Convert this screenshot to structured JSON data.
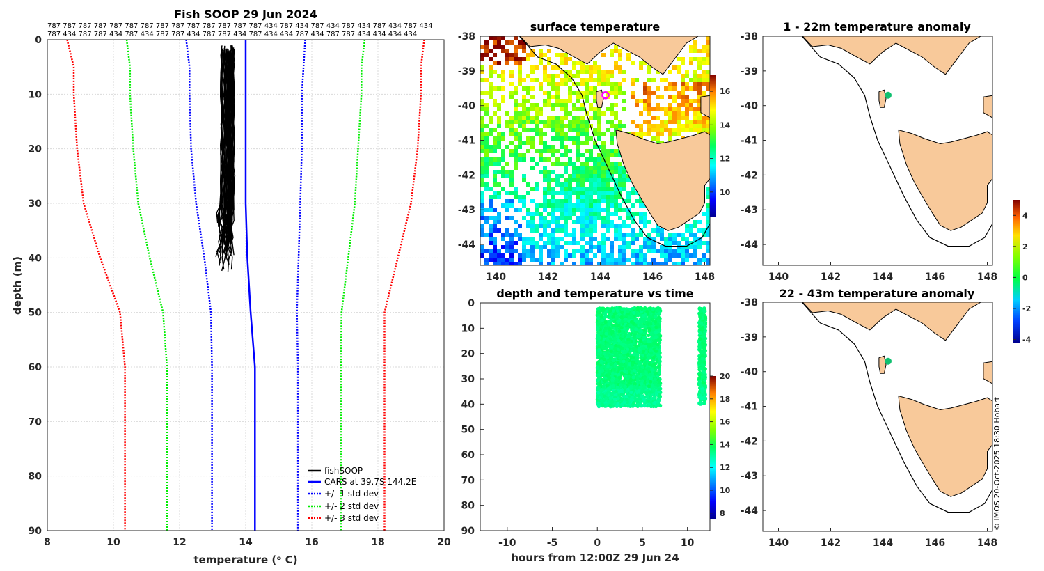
{
  "colors": {
    "fishSOOP": "#000000",
    "cars": "#0000ff",
    "std1": "#0000ff",
    "std2": "#00ee00",
    "std3": "#ff0000",
    "land": "#f8c99a",
    "marker_sst": "#ff00ff",
    "marker_anom": "#10c070"
  },
  "credit": "© IMOS 20-Oct-2025 18:30 Hobart",
  "profile": {
    "title": "Fish SOOP 29 Jun 2024",
    "id_row1": "787 787 787 787 787 787 787 787 787 787 787 787 787 787 434 787 434 787 434 787 434 787 434 787 434",
    "id_row2": "787 434 787 787 434 787 434 787 787 434 787 787 434 787 434 434 787 434 787 787 434 434 434 434",
    "xlabel": "temperature (ᵒ C)",
    "ylabel": "depth (m)",
    "legend": [
      "fishSOOP",
      "CARS at 39.7S 144.2E",
      "+/- 1 std dev",
      "+/- 2 std dev",
      "+/- 3 std dev"
    ]
  },
  "sst": {
    "title": "surface temperature"
  },
  "dtime": {
    "title": "depth and temperature vs time",
    "xlabel": "hours from 12:00Z 29 Jun 24"
  },
  "anom1": {
    "title": "1 - 22m temperature anomaly"
  },
  "anom2": {
    "title": "22 - 43m temperature anomaly"
  },
  "chart_data": [
    {
      "type": "line",
      "name": "profile",
      "title": "Fish SOOP 29 Jun 2024",
      "xlabel": "temperature (ᵒ C)",
      "ylabel": "depth (m)",
      "xlim": [
        8,
        20
      ],
      "ylim": [
        0,
        90
      ],
      "xticks": [
        8,
        10,
        12,
        14,
        16,
        18,
        20
      ],
      "yticks": [
        0,
        10,
        20,
        30,
        40,
        50,
        60,
        70,
        80,
        90
      ],
      "grid": true,
      "legend_position": "bottom-right",
      "depth": [
        0,
        5,
        10,
        20,
        30,
        40,
        50,
        60,
        70,
        80,
        90
      ],
      "cars_mean": [
        14.0,
        14.0,
        14.0,
        14.0,
        14.0,
        14.05,
        14.15,
        14.28,
        14.28,
        14.28,
        14.28
      ],
      "std1": {
        "lower": [
          12.2,
          12.3,
          12.3,
          12.35,
          12.5,
          12.75,
          12.95,
          12.98,
          12.98,
          12.98,
          12.98
        ],
        "upper": [
          15.8,
          15.75,
          15.7,
          15.7,
          15.65,
          15.6,
          15.55,
          15.58,
          15.58,
          15.58,
          15.58
        ]
      },
      "std2": {
        "lower": [
          10.4,
          10.5,
          10.5,
          10.6,
          10.75,
          11.1,
          11.5,
          11.62,
          11.62,
          11.62,
          11.62
        ],
        "upper": [
          17.6,
          17.5,
          17.5,
          17.4,
          17.3,
          17.1,
          16.9,
          16.88,
          16.88,
          16.88,
          16.88
        ]
      },
      "std3": {
        "lower": [
          8.6,
          8.8,
          8.8,
          8.9,
          9.1,
          9.6,
          10.2,
          10.35,
          10.35,
          10.35,
          10.35
        ],
        "upper": [
          19.4,
          19.3,
          19.3,
          19.2,
          19.0,
          18.6,
          18.2,
          18.2,
          18.2,
          18.2,
          18.2
        ]
      },
      "fishsoop": {
        "temp_range": [
          13.1,
          13.65
        ],
        "depth_range": [
          1,
          43
        ]
      }
    },
    {
      "type": "heatmap",
      "name": "surface temperature",
      "title": "surface temperature",
      "xlim": [
        139.4,
        148.2
      ],
      "ylim": [
        -44.6,
        -38
      ],
      "xticks": [
        140,
        142,
        144,
        146,
        148
      ],
      "yticks": [
        -38,
        -39,
        -40,
        -41,
        -42,
        -43,
        -44
      ],
      "colorbar": {
        "range": [
          8.5,
          17
        ],
        "ticks": [
          10,
          12,
          14,
          16
        ]
      },
      "marker": {
        "lon": 144.2,
        "lat": -39.7
      }
    },
    {
      "type": "scatter",
      "name": "depth and temperature vs time",
      "title": "depth and temperature vs time",
      "xlabel": "hours from 12:00Z 29 Jun 24",
      "xlim": [
        -13,
        12.5
      ],
      "ylim": [
        0,
        90
      ],
      "xticks": [
        -10,
        -5,
        0,
        5,
        10
      ],
      "yticks": [
        0,
        10,
        20,
        30,
        40,
        50,
        60,
        70,
        80,
        90
      ],
      "colorbar": {
        "range": [
          7.5,
          20
        ],
        "ticks": [
          8,
          10,
          12,
          14,
          16,
          18,
          20
        ]
      },
      "clusters": [
        {
          "hours": [
            0,
            7
          ],
          "depth": [
            1,
            43
          ],
          "temp": 13.5
        },
        {
          "hours": [
            11.3,
            12
          ],
          "depth": [
            1,
            42
          ],
          "temp": 13.5
        }
      ]
    },
    {
      "type": "heatmap",
      "name": "1 - 22m temperature anomaly",
      "title": "1 - 22m temperature anomaly",
      "xlim": [
        139.4,
        148.2
      ],
      "ylim": [
        -44.6,
        -38
      ],
      "xticks": [
        140,
        142,
        144,
        146,
        148
      ],
      "yticks": [
        -38,
        -39,
        -40,
        -41,
        -42,
        -43,
        -44
      ],
      "marker": {
        "lon": 144.2,
        "lat": -39.7
      }
    },
    {
      "type": "heatmap",
      "name": "22 - 43m temperature anomaly",
      "title": "22 - 43m temperature anomaly",
      "xlim": [
        139.4,
        148.2
      ],
      "ylim": [
        -44.6,
        -38
      ],
      "xticks": [
        140,
        142,
        144,
        146,
        148
      ],
      "yticks": [
        -38,
        -39,
        -40,
        -41,
        -42,
        -43,
        -44
      ],
      "marker": {
        "lon": 144.2,
        "lat": -39.7
      },
      "colorbar": {
        "range": [
          -4.2,
          5
        ],
        "ticks": [
          -4,
          -2,
          0,
          2,
          4
        ]
      }
    }
  ]
}
